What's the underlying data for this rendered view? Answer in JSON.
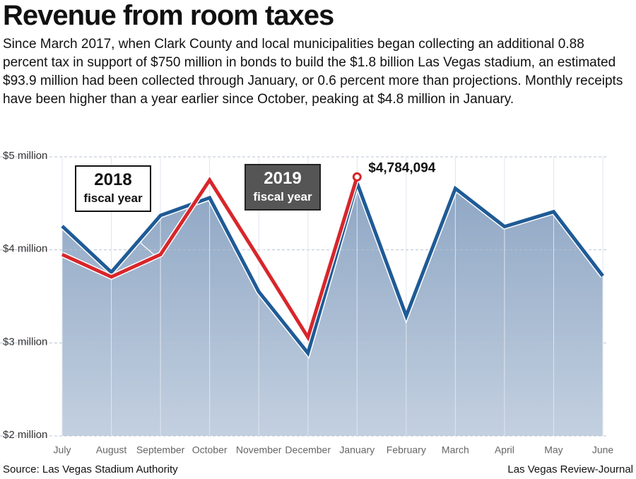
{
  "chart_data": {
    "type": "line",
    "title": "Revenue from room taxes",
    "subtitle": "Since March 2017, when Clark County and local municipalities began collecting an additional 0.88 percent tax in support of $750 million in bonds to build the $1.8 billion Las Vegas stadium, an estimated $93.9 million had been collected through January, or 0.6 percent more than projections. Monthly receipts have been higher than a year earlier since October, peaking at $4.8 million in January.",
    "categories": [
      "July",
      "August",
      "September",
      "October",
      "November",
      "December",
      "January",
      "February",
      "March",
      "April",
      "May",
      "June"
    ],
    "series": [
      {
        "name": "2018 fiscal year",
        "color": "#1f5b96",
        "values": [
          4255000,
          3760000,
          4370000,
          4560000,
          3550000,
          2890000,
          4720000,
          3290000,
          4660000,
          4250000,
          4410000,
          3720000
        ]
      },
      {
        "name": "2019 fiscal year",
        "color": "#d7262b",
        "values": [
          3950000,
          3710000,
          3950000,
          4750000,
          3910000,
          3060000,
          4784094,
          null,
          null,
          null,
          null,
          null
        ],
        "value_labels": [
          null,
          null,
          null,
          null,
          null,
          null,
          "$4,784,094",
          null,
          null,
          null,
          null,
          null
        ]
      }
    ],
    "ylim": [
      2000000,
      5000000
    ],
    "yticks": [
      {
        "value": 2000000,
        "label": "$2 million"
      },
      {
        "value": 3000000,
        "label": "$3 million"
      },
      {
        "value": 4000000,
        "label": "$4 million"
      },
      {
        "value": 5000000,
        "label": "$5 million"
      }
    ],
    "grid": true,
    "source": "Source: Las Vegas Stadium Authority",
    "credit": "Las Vegas Review-Journal"
  }
}
